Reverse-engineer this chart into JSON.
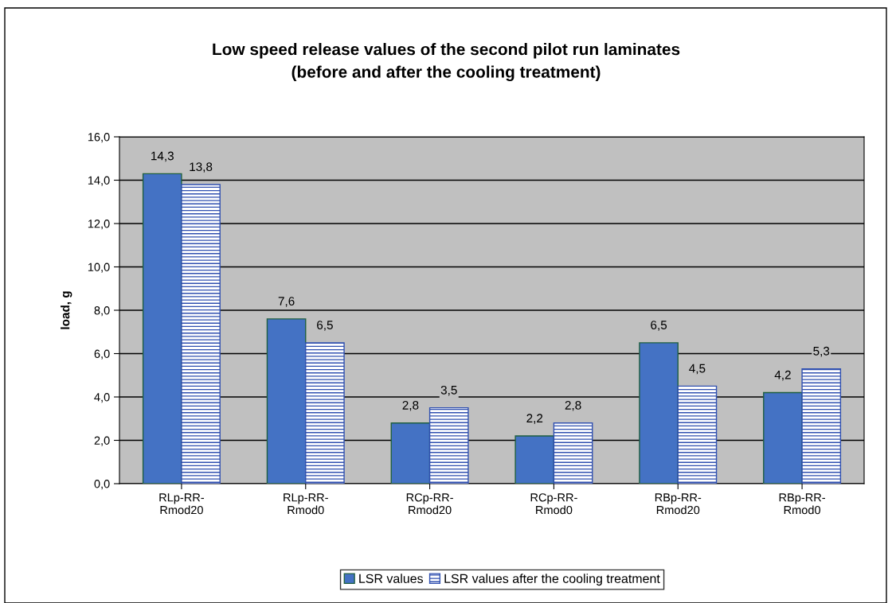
{
  "chart_data": {
    "type": "bar",
    "title": "Low speed release values of the second pilot run laminates\n(before and after the cooling treatment)",
    "ylabel": "load, g",
    "categories": [
      "RLp-RR-\nRmod20",
      "RLp-RR-\nRmod0",
      "RCp-RR-\nRmod20",
      "RCp-RR-\nRmod0",
      "RBp-RR-\nRmod20",
      "RBp-RR-\nRmod0"
    ],
    "series": [
      {
        "name": "LSR values",
        "color": "#4472c4",
        "values": [
          14.3,
          7.6,
          2.8,
          2.2,
          6.5,
          4.2
        ],
        "value_labels": [
          "14,3",
          "7,6",
          "2,8",
          "2,2",
          "6,5",
          "4,2"
        ]
      },
      {
        "name": "LSR values after the cooling treatment",
        "color": "#3050b0",
        "values": [
          13.8,
          6.5,
          3.5,
          2.8,
          4.5,
          5.3
        ],
        "value_labels": [
          "13,8",
          "6,5",
          "3,5",
          "2,8",
          "4,5",
          "5,3"
        ]
      }
    ],
    "ylim": [
      0,
      16
    ],
    "yticks": [
      {
        "value": 0,
        "label": "0,0"
      },
      {
        "value": 2,
        "label": "2,0"
      },
      {
        "value": 4,
        "label": "4,0"
      },
      {
        "value": 6,
        "label": "6,0"
      },
      {
        "value": 8,
        "label": "8,0"
      },
      {
        "value": 10,
        "label": "10,0"
      },
      {
        "value": 12,
        "label": "12,0"
      },
      {
        "value": 14,
        "label": "14,0"
      },
      {
        "value": 16,
        "label": "16,0"
      }
    ],
    "grid": "y",
    "legend": "bottom"
  }
}
